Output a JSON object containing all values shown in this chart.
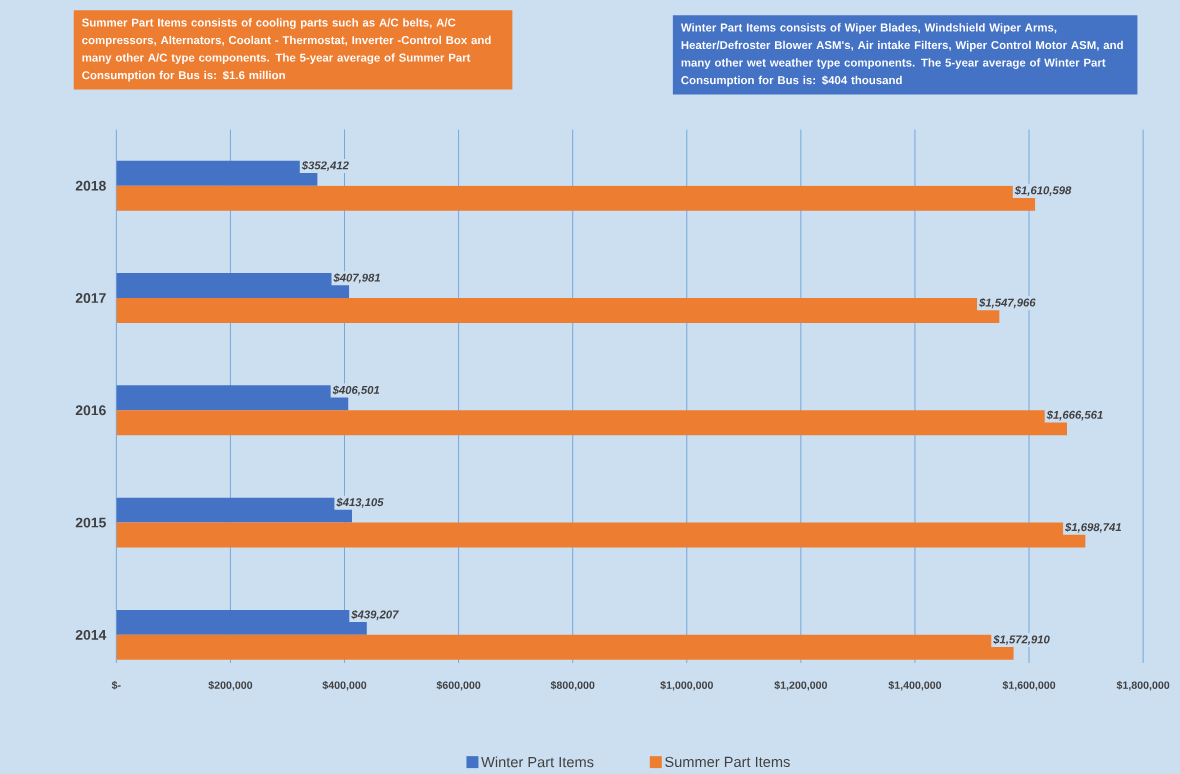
{
  "chart_data": {
    "type": "bar",
    "orientation": "horizontal",
    "categories": [
      "2018",
      "2017",
      "2016",
      "2015",
      "2014"
    ],
    "series": [
      {
        "name": "Winter Part Items",
        "color": "#4472c4",
        "values": [
          352412,
          407981,
          406501,
          413105,
          439207
        ],
        "value_labels": [
          "$352,412",
          "$407,981",
          "$406,501",
          "$413,105",
          "$439,207"
        ]
      },
      {
        "name": "Summer Part Items",
        "color": "#ed7d31",
        "values": [
          1610598,
          1547966,
          1666561,
          1698741,
          1572910
        ],
        "value_labels": [
          "$1,610,598",
          "$1,547,966",
          "$1,666,561",
          "$1,698,741",
          "$1,572,910"
        ]
      }
    ],
    "xlim": [
      0,
      1800000
    ],
    "xticks": [
      {
        "value": 0,
        "label": "$-"
      },
      {
        "value": 200000,
        "label": "$200,000"
      },
      {
        "value": 400000,
        "label": "$400,000"
      },
      {
        "value": 600000,
        "label": "$600,000"
      },
      {
        "value": 800000,
        "label": "$800,000"
      },
      {
        "value": 1000000,
        "label": "$1,000,000"
      },
      {
        "value": 1200000,
        "label": "$1,200,000"
      },
      {
        "value": 1400000,
        "label": "$1,400,000"
      },
      {
        "value": 1600000,
        "label": "$1,600,000"
      },
      {
        "value": 1800000,
        "label": "$1,800,000"
      }
    ],
    "grid": "x",
    "legend": "bottom",
    "annotations": [
      "Summer Part Items consists of cooling parts such as A/C belts, A/C compressors, Alternators, Coolant - Thermostat, Inverter -Control Box and many other A/C type components. The 5-year average of Summer Part Consumption for Bus is: $1.6 million",
      "Winter Part Items consists of Wiper Blades, Windshield Wiper Arms, Heater/Defroster Blower ASM's, Air intake Filters, Wiper Control Motor ASM, and many other wet weather type components. The 5-year average of Winter Part Consumption for Bus is:  $404 thousand"
    ]
  }
}
